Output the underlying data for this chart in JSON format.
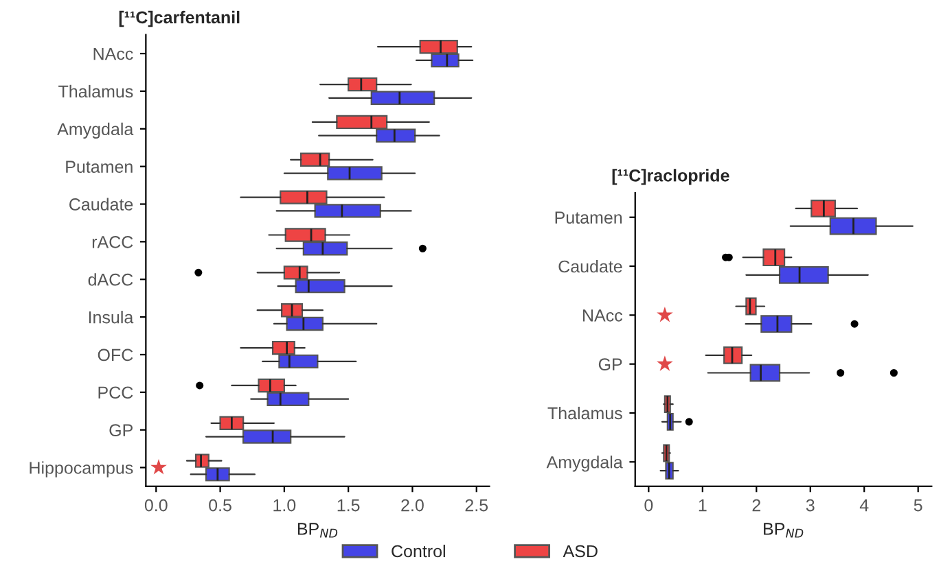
{
  "chart_data": [
    {
      "type": "box",
      "orientation": "horizontal",
      "title": "[¹¹C]carfentanil",
      "xlabel": "BP$_{ND}$",
      "categories": [
        "NAcc",
        "Thalamus",
        "Amygdala",
        "Putamen",
        "Caudate",
        "rACC",
        "dACC",
        "Insula",
        "OFC",
        "PCC",
        "GP",
        "Hippocampus"
      ],
      "xlim": [
        -0.08,
        2.6
      ],
      "xticks": [
        {
          "value": 0,
          "label": "0.0"
        },
        0.5,
        {
          "value": 1,
          "label": "1.0"
        },
        1.5,
        {
          "value": 2,
          "label": "2.0"
        },
        2.5
      ],
      "legend": "bottom",
      "grid": false,
      "series": [
        {
          "name": "Control",
          "color": "#4444e6",
          "boxes": [
            {
              "low": 2.03,
              "q1": 2.15,
              "median": 2.27,
              "q3": 2.36,
              "high": 2.47
            },
            {
              "low": 1.35,
              "q1": 1.68,
              "median": 1.9,
              "q3": 2.17,
              "high": 2.46
            },
            {
              "low": 1.27,
              "q1": 1.72,
              "median": 1.86,
              "q3": 2.02,
              "high": 2.21
            },
            {
              "low": 1.0,
              "q1": 1.34,
              "median": 1.51,
              "q3": 1.76,
              "high": 2.02
            },
            {
              "low": 0.94,
              "q1": 1.24,
              "median": 1.45,
              "q3": 1.75,
              "high": 1.99
            },
            {
              "low": 0.94,
              "q1": 1.15,
              "median": 1.3,
              "q3": 1.49,
              "high": 1.84,
              "outliers": [
                2.08
              ]
            },
            {
              "low": 0.95,
              "q1": 1.09,
              "median": 1.19,
              "q3": 1.47,
              "high": 1.84
            },
            {
              "low": 0.92,
              "q1": 1.02,
              "median": 1.15,
              "q3": 1.3,
              "high": 1.72
            },
            {
              "low": 0.83,
              "q1": 0.96,
              "median": 1.04,
              "q3": 1.26,
              "high": 1.56
            },
            {
              "low": 0.74,
              "q1": 0.87,
              "median": 0.97,
              "q3": 1.19,
              "high": 1.5
            },
            {
              "low": 0.39,
              "q1": 0.68,
              "median": 0.91,
              "q3": 1.05,
              "high": 1.47
            },
            {
              "low": 0.27,
              "q1": 0.39,
              "median": 0.48,
              "q3": 0.57,
              "high": 0.77
            }
          ]
        },
        {
          "type": "scatter",
          "marker": "star",
          "color": "#e04848",
          "x": [
            "Hippocampus"
          ],
          "values": [
            0.02
          ]
        },
        {
          "name": "ASD",
          "color": "#ee4444",
          "boxes": [
            {
              "low": 1.73,
              "q1": 2.06,
              "median": 2.22,
              "q3": 2.35,
              "high": 2.46
            },
            {
              "low": 1.28,
              "q1": 1.5,
              "median": 1.6,
              "q3": 1.72,
              "high": 1.99
            },
            {
              "low": 1.22,
              "q1": 1.41,
              "median": 1.68,
              "q3": 1.8,
              "high": 2.13
            },
            {
              "low": 1.05,
              "q1": 1.13,
              "median": 1.28,
              "q3": 1.35,
              "high": 1.69
            },
            {
              "low": 0.66,
              "q1": 0.97,
              "median": 1.18,
              "q3": 1.33,
              "high": 1.78
            },
            {
              "low": 0.88,
              "q1": 1.01,
              "median": 1.21,
              "q3": 1.32,
              "high": 1.51
            },
            {
              "low": 0.79,
              "q1": 1.0,
              "median": 1.12,
              "q3": 1.18,
              "high": 1.43,
              "outliers": [
                0.33
              ]
            },
            {
              "low": 0.79,
              "q1": 0.98,
              "median": 1.06,
              "q3": 1.14,
              "high": 1.3
            },
            {
              "low": 0.66,
              "q1": 0.91,
              "median": 1.02,
              "q3": 1.08,
              "high": 1.16
            },
            {
              "low": 0.59,
              "q1": 0.8,
              "median": 0.89,
              "q3": 1.0,
              "high": 1.09,
              "outliers": [
                0.34
              ]
            },
            {
              "low": 0.43,
              "q1": 0.5,
              "median": 0.59,
              "q3": 0.68,
              "high": 0.92
            },
            {
              "low": 0.24,
              "q1": 0.31,
              "median": 0.35,
              "q3": 0.41,
              "high": 0.51
            }
          ]
        }
      ]
    },
    {
      "type": "box",
      "orientation": "horizontal",
      "title": "[¹¹C]raclopride",
      "xlabel": "BP$_{ND}$",
      "categories": [
        "Putamen",
        "Caudate",
        "NAcc",
        "GP",
        "Thalamus",
        "Amygdala"
      ],
      "xlim": [
        -0.25,
        5.25
      ],
      "xticks": [
        0,
        1,
        2,
        3,
        4,
        5
      ],
      "grid": false,
      "series": [
        {
          "color": "#4444e6",
          "boxes": [
            {
              "low": 2.63,
              "q1": 3.37,
              "median": 3.8,
              "q3": 4.22,
              "high": 4.9
            },
            {
              "low": 1.81,
              "q1": 2.43,
              "median": 2.8,
              "q3": 3.33,
              "high": 4.07
            },
            {
              "low": 1.8,
              "q1": 2.09,
              "median": 2.39,
              "q3": 2.65,
              "high": 3.02,
              "outliers": [
                3.82
              ]
            },
            {
              "low": 1.1,
              "q1": 1.89,
              "median": 2.08,
              "q3": 2.43,
              "high": 2.98,
              "outliers": [
                3.56,
                4.55
              ]
            },
            {
              "low": 0.25,
              "q1": 0.35,
              "median": 0.4,
              "q3": 0.45,
              "high": 0.6,
              "outliers": [
                0.75
              ]
            },
            {
              "low": 0.22,
              "q1": 0.32,
              "median": 0.38,
              "q3": 0.45,
              "high": 0.55
            }
          ]
        },
        {
          "color": "#ee4444",
          "boxes": [
            {
              "low": 2.73,
              "q1": 3.02,
              "median": 3.25,
              "q3": 3.46,
              "high": 3.87
            },
            {
              "low": 1.75,
              "q1": 2.13,
              "median": 2.35,
              "q3": 2.52,
              "high": 2.65,
              "outliers": [
                1.43,
                1.49
              ]
            },
            {
              "low": 1.62,
              "q1": 1.81,
              "median": 1.88,
              "q3": 1.99,
              "high": 2.15
            },
            {
              "low": 1.06,
              "q1": 1.4,
              "median": 1.55,
              "q3": 1.73,
              "high": 1.91
            },
            {
              "low": 0.28,
              "q1": 0.3,
              "median": 0.35,
              "q3": 0.4,
              "high": 0.45
            },
            {
              "low": 0.25,
              "q1": 0.28,
              "median": 0.33,
              "q3": 0.38,
              "high": 0.4
            }
          ]
        },
        {
          "type": "scatter",
          "marker": "star",
          "color": "#e04848",
          "x": [
            "NAcc",
            "GP"
          ],
          "values": [
            0.3,
            0.3
          ]
        }
      ]
    }
  ]
}
